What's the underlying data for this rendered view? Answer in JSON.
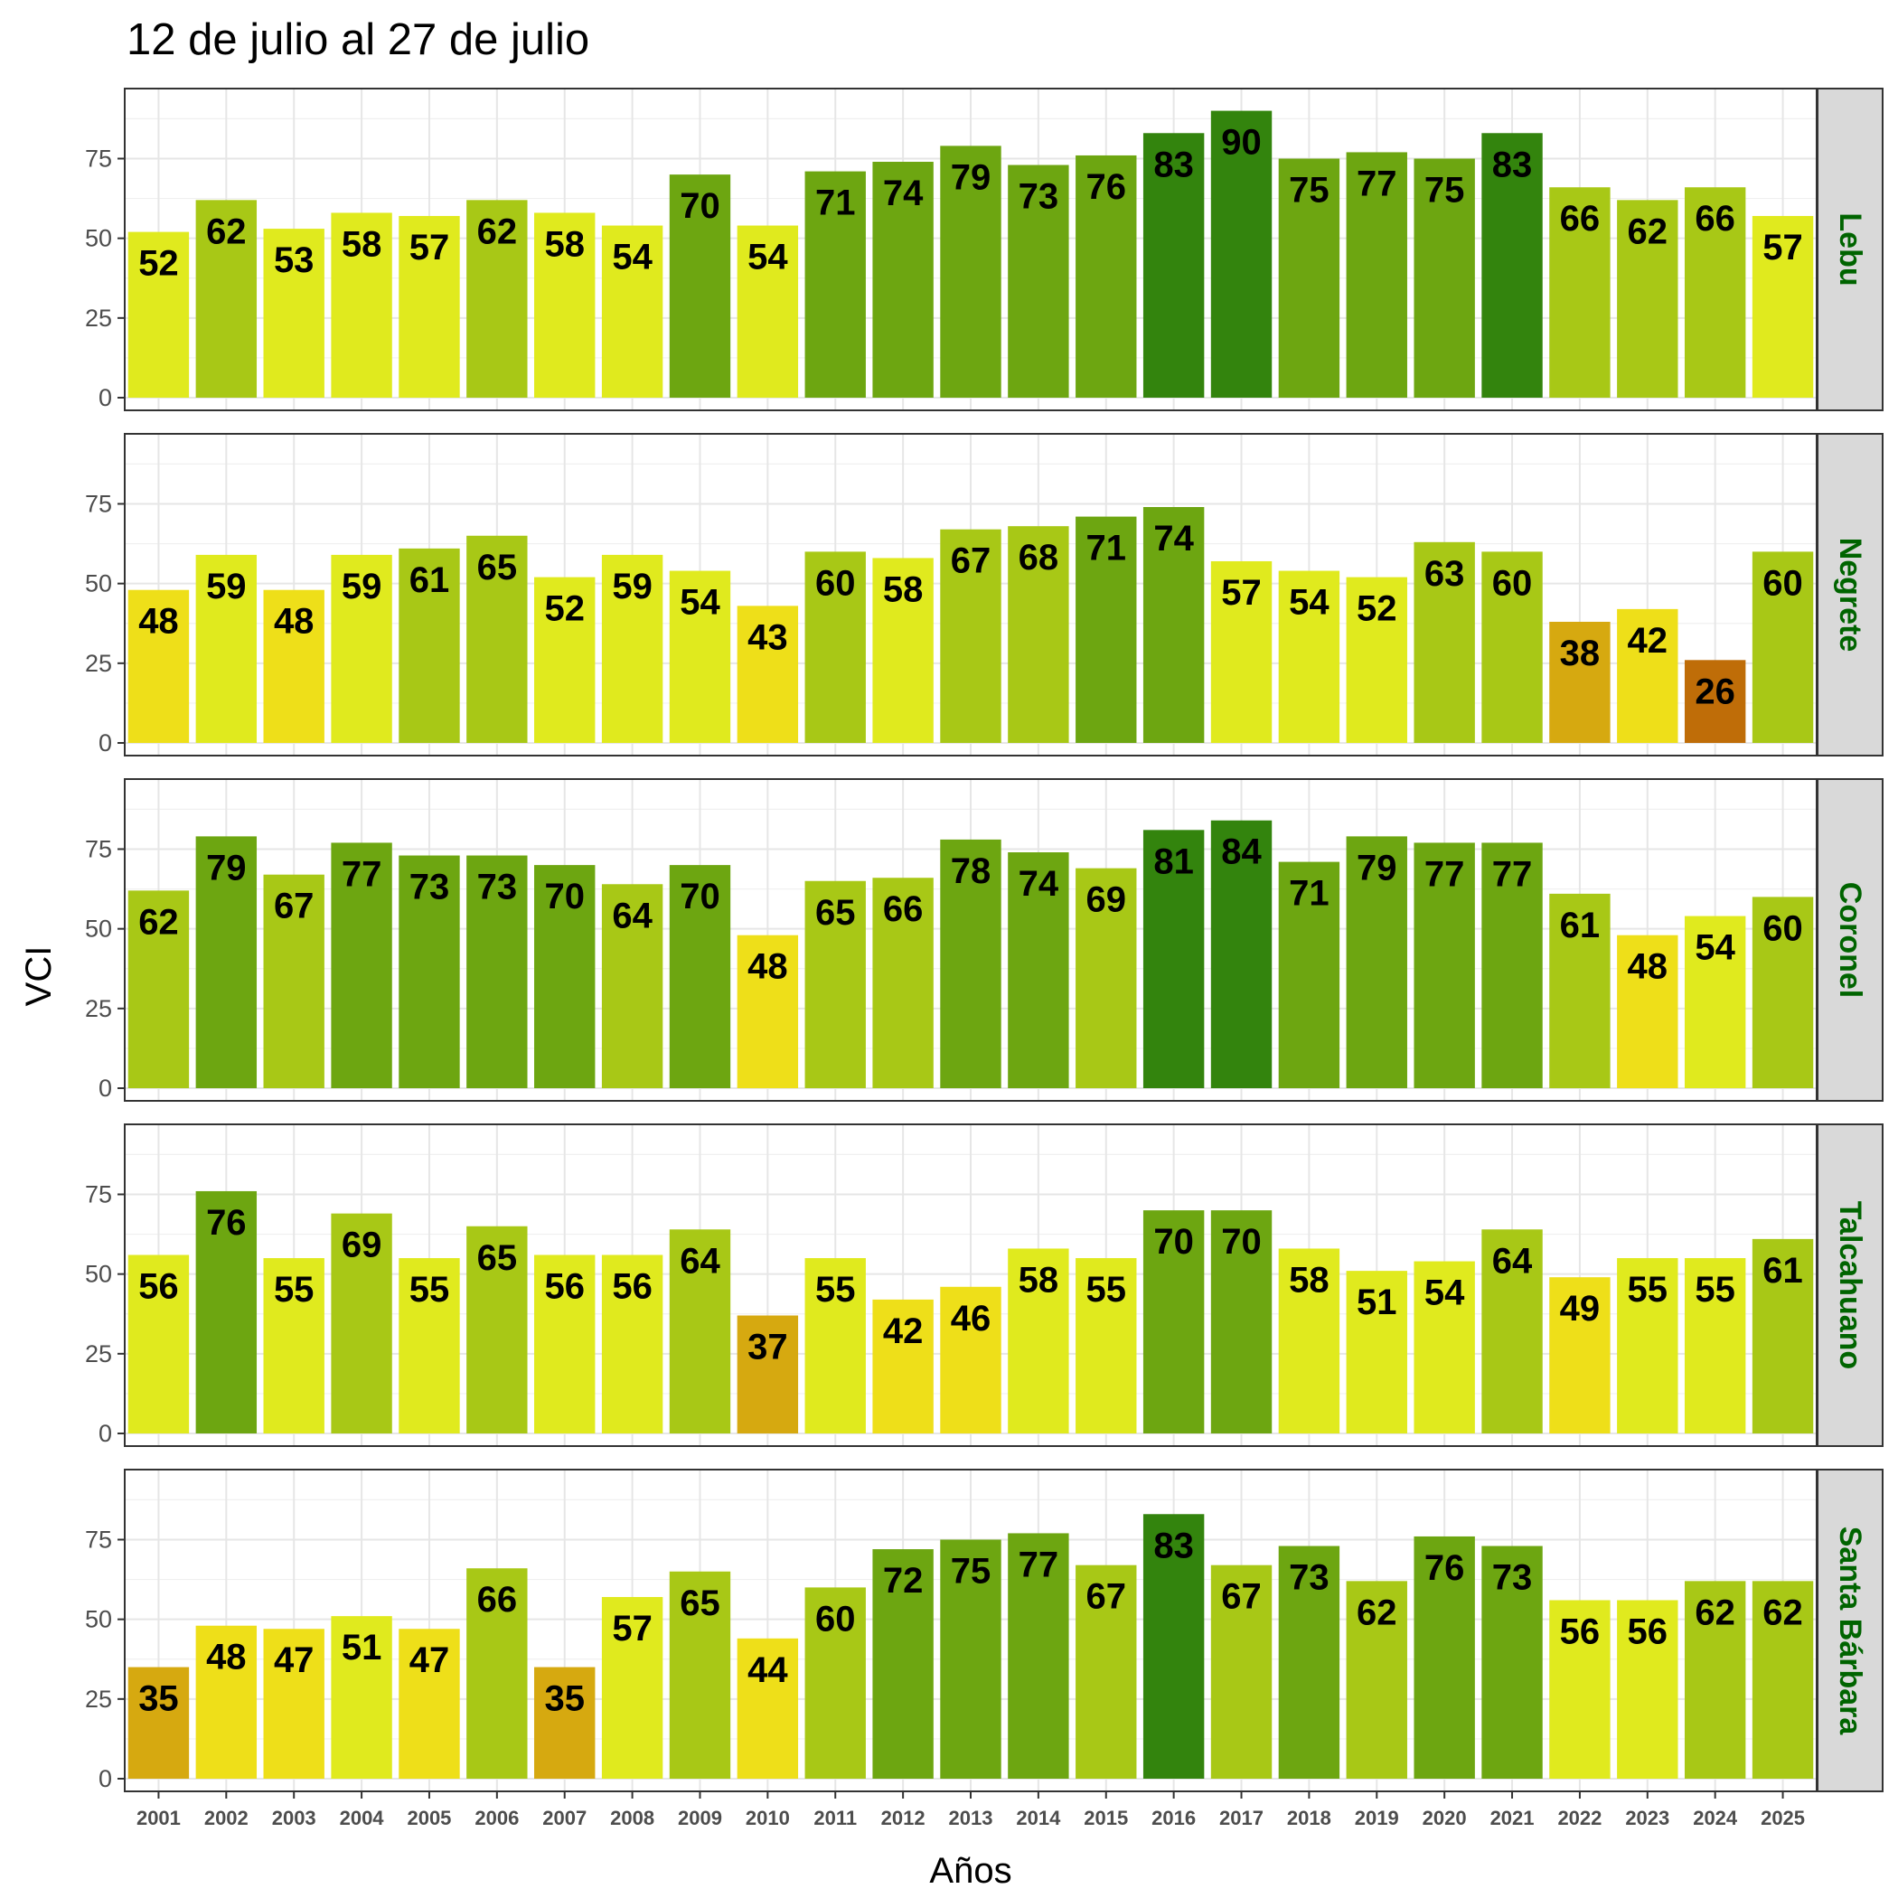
{
  "chart_data": {
    "type": "bar",
    "title": "12 de julio al 27 de julio",
    "xlabel": "Años",
    "ylabel": "VCI",
    "ylim": [
      0,
      93
    ],
    "yticks": [
      0,
      25,
      50,
      75
    ],
    "grid": true,
    "categories": [
      "2001",
      "2002",
      "2003",
      "2004",
      "2005",
      "2006",
      "2007",
      "2008",
      "2009",
      "2010",
      "2011",
      "2012",
      "2013",
      "2014",
      "2015",
      "2016",
      "2017",
      "2018",
      "2019",
      "2020",
      "2021",
      "2022",
      "2023",
      "2024",
      "2025"
    ],
    "facets": [
      {
        "name": "Lebu",
        "values": [
          52,
          62,
          53,
          58,
          57,
          62,
          58,
          54,
          70,
          54,
          71,
          74,
          79,
          73,
          76,
          83,
          90,
          75,
          77,
          75,
          83,
          66,
          62,
          66,
          57
        ]
      },
      {
        "name": "Negrete",
        "values": [
          48,
          59,
          48,
          59,
          61,
          65,
          52,
          59,
          54,
          43,
          60,
          58,
          67,
          68,
          71,
          74,
          57,
          54,
          52,
          63,
          60,
          38,
          42,
          26,
          60
        ]
      },
      {
        "name": "Coronel",
        "values": [
          62,
          79,
          67,
          77,
          73,
          73,
          70,
          64,
          70,
          48,
          65,
          66,
          78,
          74,
          69,
          81,
          84,
          71,
          79,
          77,
          77,
          61,
          48,
          54,
          60
        ]
      },
      {
        "name": "Talcahuano",
        "values": [
          56,
          76,
          55,
          69,
          55,
          65,
          56,
          56,
          64,
          37,
          55,
          42,
          46,
          58,
          55,
          70,
          70,
          58,
          51,
          54,
          64,
          49,
          55,
          55,
          61
        ]
      },
      {
        "name": "Santa Bárbara",
        "values": [
          35,
          48,
          47,
          51,
          47,
          66,
          35,
          57,
          65,
          44,
          60,
          72,
          75,
          77,
          67,
          83,
          67,
          73,
          62,
          76,
          73,
          56,
          56,
          62,
          62
        ]
      }
    ],
    "color_scale": [
      {
        "min": 0,
        "max": 29,
        "color": "#bf6d08"
      },
      {
        "min": 30,
        "max": 39,
        "color": "#d6a910"
      },
      {
        "min": 40,
        "max": 49,
        "color": "#eedf19"
      },
      {
        "min": 50,
        "max": 59,
        "color": "#e0ea1e"
      },
      {
        "min": 60,
        "max": 69,
        "color": "#a8c816"
      },
      {
        "min": 70,
        "max": 79,
        "color": "#6da611"
      },
      {
        "min": 80,
        "max": 100,
        "color": "#33840d"
      }
    ],
    "strip_fill": "#d9d9d9",
    "strip_text_color": "#006400"
  }
}
